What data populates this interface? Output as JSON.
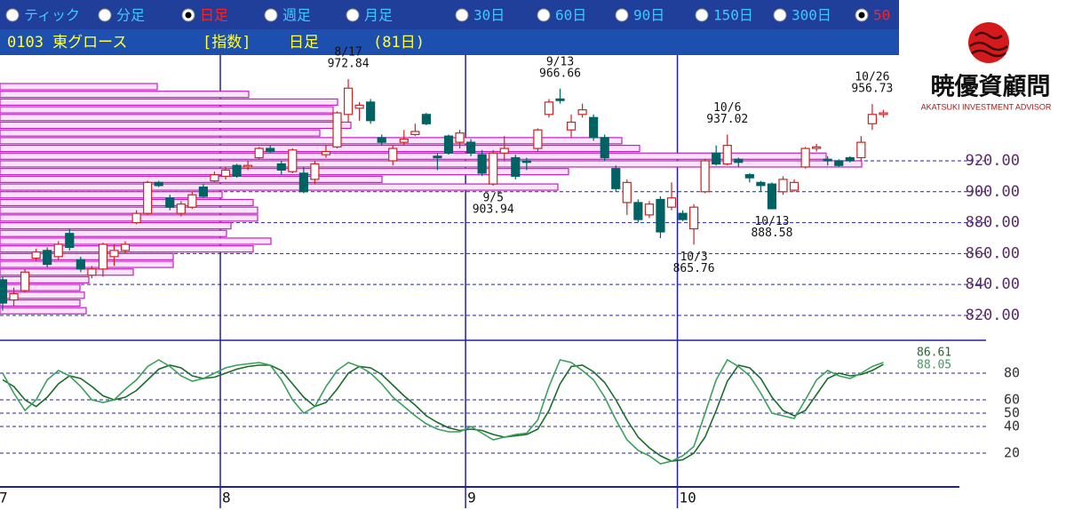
{
  "toolbar": {
    "options": [
      {
        "label": "ティック"
      },
      {
        "label": "分足"
      },
      {
        "label": "日足",
        "selected": true
      },
      {
        "label": "週足"
      },
      {
        "label": "月足"
      },
      {
        "label": "30日"
      },
      {
        "label": "60日"
      },
      {
        "label": "90日"
      },
      {
        "label": "150日"
      },
      {
        "label": "300日"
      },
      {
        "label": "50",
        "selected": true
      }
    ]
  },
  "header": {
    "code_name": "0103 東グロース",
    "kind": "[指数]",
    "period": "日足",
    "count": "(81日)"
  },
  "logo": {
    "name": "暁優資顧問",
    "subtitle": "AKATSUKI INVESTMENT ADVISOR"
  },
  "chart_data": [
    {
      "type": "candlestick",
      "categories": [
        "7",
        null,
        null,
        null,
        null,
        null,
        null,
        null,
        null,
        null,
        null,
        null,
        null,
        null,
        null,
        null,
        null,
        null,
        null,
        null,
        "8",
        null,
        null,
        null,
        null,
        null,
        null,
        null,
        null,
        null,
        null,
        null,
        null,
        null,
        null,
        null,
        null,
        null,
        null,
        null,
        null,
        null,
        "9",
        null,
        null,
        null,
        null,
        null,
        null,
        null,
        null,
        null,
        null,
        null,
        null,
        null,
        null,
        null,
        null,
        null,
        null,
        "10",
        null,
        null,
        null,
        null,
        null,
        null,
        null,
        null,
        null,
        null,
        null,
        null,
        null,
        null,
        null,
        null,
        null,
        null
      ],
      "open": [
        843,
        830,
        836,
        857,
        862,
        858,
        873,
        856,
        846,
        850,
        858,
        862,
        880,
        886,
        906,
        896,
        886,
        890,
        903,
        907,
        910,
        917,
        916,
        922,
        928,
        918,
        913,
        912,
        908,
        924,
        929,
        950,
        954,
        958,
        935,
        920,
        932,
        937,
        950,
        923,
        936,
        932,
        932,
        924,
        905,
        925,
        922,
        920,
        928,
        950,
        960,
        940,
        950,
        948,
        935,
        915,
        893,
        893,
        885,
        895,
        890,
        886,
        876,
        900,
        925,
        918,
        921,
        911,
        906,
        905,
        900,
        901,
        916,
        928,
        921,
        920,
        922,
        922,
        944,
        950
      ],
      "high": [
        845,
        838,
        850,
        863,
        864,
        868,
        876,
        858,
        852,
        867,
        866,
        868,
        888,
        907,
        907,
        898,
        894,
        900,
        905,
        913,
        916,
        918,
        920,
        929,
        930,
        920,
        928,
        916,
        920,
        930,
        952,
        972.84,
        958,
        960,
        937,
        930,
        940,
        944,
        951,
        925,
        937,
        940,
        934,
        927,
        927,
        936,
        924,
        922,
        941,
        960,
        966.66,
        950,
        957,
        950,
        937,
        917,
        908,
        895,
        894,
        897,
        906,
        888,
        892,
        921,
        930,
        937.02,
        922,
        912,
        907,
        906,
        910,
        908,
        929,
        931,
        923,
        921,
        923,
        936,
        956.73,
        953
      ],
      "low": [
        823,
        826,
        835,
        855,
        851,
        856,
        862,
        848,
        844,
        845,
        852,
        860,
        879,
        885,
        903,
        888,
        884,
        889,
        896,
        906,
        908,
        909,
        914,
        921,
        925,
        911,
        912,
        899,
        905,
        922,
        928,
        945,
        946,
        944,
        930,
        917,
        930,
        936,
        943,
        914,
        924,
        928,
        923,
        910,
        903.94,
        920,
        908,
        914,
        926,
        948,
        957,
        935,
        948,
        933,
        920,
        900,
        885,
        880,
        883,
        870,
        888,
        881,
        865.76,
        899,
        917,
        917,
        916,
        906,
        900,
        888.58,
        898,
        900,
        915,
        926,
        917,
        916,
        919,
        920,
        940,
        948
      ],
      "close": [
        828,
        834,
        848,
        861,
        853,
        866,
        864,
        850,
        850,
        866,
        862,
        866,
        886,
        906,
        904,
        890,
        892,
        898,
        897,
        911,
        914,
        910,
        917,
        928,
        926,
        914,
        927,
        900,
        918,
        926,
        951,
        967,
        956,
        946,
        932,
        928,
        934,
        939,
        944,
        922,
        925,
        938,
        925,
        912,
        925,
        928,
        910,
        919,
        940,
        958,
        959,
        945,
        953,
        935,
        922,
        902,
        906,
        882,
        892,
        874,
        896,
        882,
        890,
        920,
        918,
        930,
        919,
        909,
        904,
        889,
        908,
        906,
        928,
        929,
        920,
        917,
        920,
        932,
        950,
        951
      ],
      "up_color": "#cc2222",
      "down_color": "#006262",
      "annotations": [
        {
          "date": "8/17",
          "value": 972.84
        },
        {
          "date": "9/13",
          "value": 966.66
        },
        {
          "date": "9/5",
          "value": 903.94
        },
        {
          "date": "10/3",
          "value": 865.76
        },
        {
          "date": "10/6",
          "value": 937.02
        },
        {
          "date": "10/13",
          "value": 888.58
        },
        {
          "date": "10/26",
          "value": 956.73
        }
      ],
      "volume_profile": {
        "color": "#c020c0",
        "prices": [
          968,
          963,
          958,
          953,
          948,
          943,
          938,
          933,
          928,
          923,
          918,
          913,
          908,
          903,
          898,
          893,
          888,
          883,
          878,
          873,
          868,
          863,
          858,
          853,
          848,
          843,
          838,
          833,
          828,
          823
        ],
        "values": [
          177,
          280,
          380,
          375,
          380,
          395,
          360,
          700,
          720,
          930,
          970,
          640,
          430,
          628,
          250,
          285,
          290,
          290,
          260,
          255,
          305,
          285,
          195,
          195,
          150,
          100,
          90,
          95,
          90,
          97
        ]
      },
      "ylim": [
        805.6,
        988.4
      ],
      "yticks": [
        {
          "value": 820,
          "label": "820.00"
        },
        {
          "value": 840,
          "label": "840.00"
        },
        {
          "value": 860,
          "label": "860.00"
        },
        {
          "value": 880,
          "label": "880.00"
        },
        {
          "value": 900,
          "label": "900.00"
        },
        {
          "value": 920,
          "label": "920.00"
        }
      ],
      "grid": true
    },
    {
      "type": "line",
      "series": [
        {
          "color": "#1b6b2b",
          "values": [
            75,
            70,
            60,
            55,
            62,
            72,
            78,
            76,
            70,
            63,
            60,
            62,
            67,
            75,
            83,
            86,
            84,
            78,
            76,
            77,
            80,
            83,
            85,
            86,
            86,
            82,
            72,
            62,
            55,
            58,
            68,
            80,
            85,
            84,
            79,
            71,
            63,
            56,
            48,
            43,
            39,
            37,
            38,
            37,
            34,
            32,
            33,
            34,
            38,
            52,
            72,
            85,
            86,
            81,
            73,
            60,
            45,
            32,
            24,
            18,
            14,
            15,
            20,
            32,
            52,
            74,
            86,
            84,
            76,
            62,
            52,
            48,
            52,
            64,
            76,
            80,
            78,
            79,
            82,
            86.61
          ]
        },
        {
          "color": "#3aa05a",
          "values": [
            80,
            65,
            52,
            60,
            75,
            82,
            78,
            70,
            60,
            58,
            60,
            68,
            75,
            85,
            90,
            85,
            78,
            74,
            76,
            80,
            84,
            86,
            87,
            88,
            86,
            75,
            60,
            50,
            55,
            70,
            82,
            88,
            85,
            80,
            72,
            62,
            55,
            48,
            42,
            38,
            36,
            36,
            40,
            35,
            30,
            32,
            34,
            35,
            45,
            70,
            90,
            88,
            82,
            75,
            62,
            45,
            30,
            22,
            18,
            12,
            14,
            18,
            25,
            50,
            75,
            90,
            85,
            78,
            65,
            50,
            48,
            46,
            60,
            75,
            82,
            78,
            76,
            80,
            85,
            88.05
          ]
        }
      ],
      "ylim": [
        0,
        100
      ],
      "yticks": [
        20,
        40,
        50,
        60,
        80
      ],
      "grid": true
    }
  ]
}
